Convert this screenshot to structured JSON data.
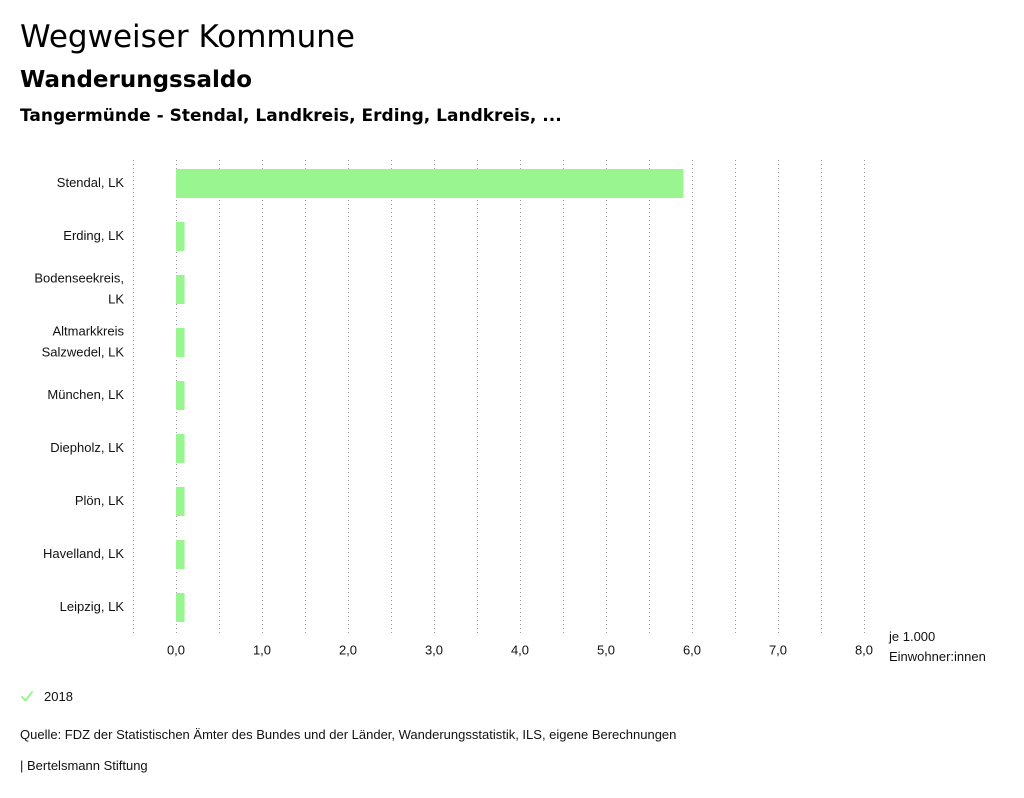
{
  "header": {
    "title": "Wegweiser Kommune",
    "subtitle": "Wanderungssaldo",
    "region": "Tangermünde - Stendal, Landkreis, Erding, Landkreis, ..."
  },
  "chart_data": {
    "type": "bar",
    "orientation": "horizontal",
    "categories": [
      [
        "Stendal, LK"
      ],
      [
        "Erding, LK"
      ],
      [
        "Bodenseekreis,",
        "LK"
      ],
      [
        "Altmarkkreis",
        "Salzwedel, LK"
      ],
      [
        "München, LK"
      ],
      [
        "Diepholz, LK"
      ],
      [
        "Plön, LK"
      ],
      [
        "Havelland, LK"
      ],
      [
        "Leipzig, LK"
      ]
    ],
    "series": [
      {
        "name": "2018",
        "color": "#99f58f",
        "values": [
          5.9,
          0.1,
          0.1,
          0.1,
          0.1,
          0.1,
          0.1,
          0.1,
          0.1
        ]
      }
    ],
    "xlim": [
      -0.5,
      8.0
    ],
    "xticks": [
      0,
      1,
      2,
      3,
      4,
      5,
      6,
      7,
      8
    ],
    "xtick_labels": [
      "0,0",
      "1,0",
      "2,0",
      "3,0",
      "4,0",
      "5,0",
      "6,0",
      "7,0",
      "8,0"
    ],
    "xlabel_lines": [
      "je 1.000",
      "Einwohner:innen"
    ],
    "grid": "vertical-dotted",
    "legend_position": "bottom-left"
  },
  "legend": {
    "label": "2018",
    "icon": "check-icon",
    "color": "#99f58f"
  },
  "footer": {
    "source": "Quelle: FDZ der Statistischen Ämter des Bundes und der Länder, Wanderungsstatistik, ILS, eigene Berechnungen",
    "credit": "| Bertelsmann Stiftung"
  }
}
